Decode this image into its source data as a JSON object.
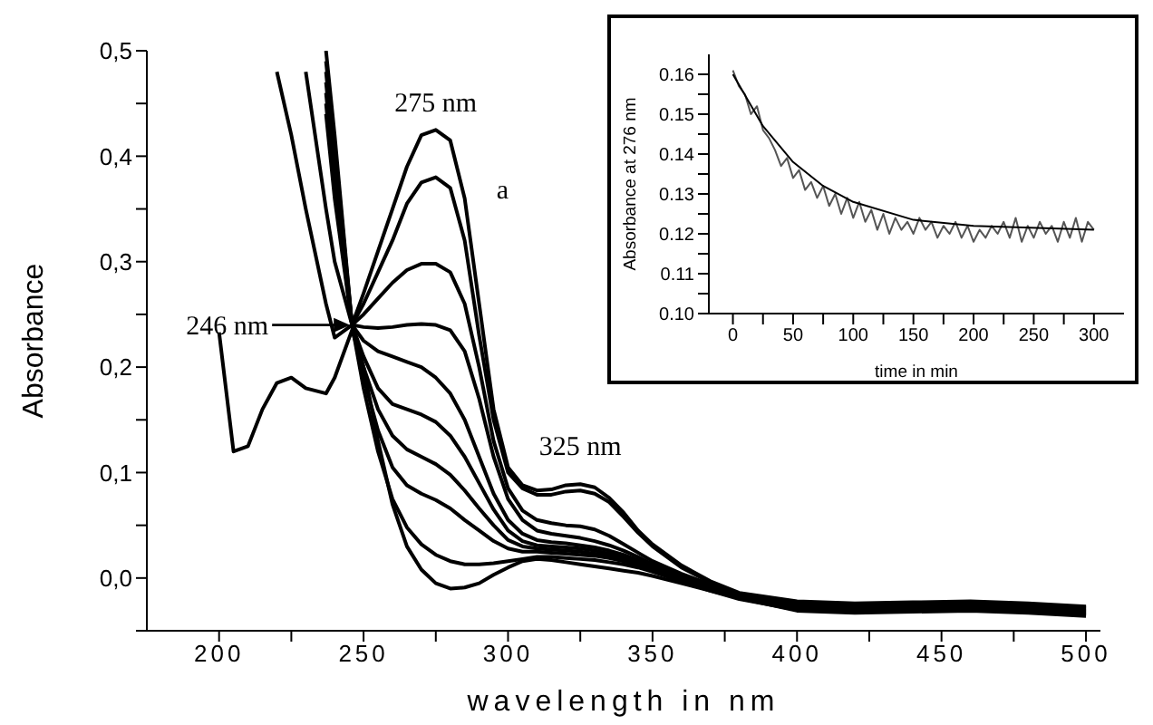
{
  "chart_data": [
    {
      "type": "line",
      "xlabel": "wavelength in nm",
      "ylabel": "Absorbance",
      "marker": "none",
      "x": [
        200,
        205,
        210,
        215,
        220,
        225,
        230,
        237,
        240,
        246,
        250,
        255,
        260,
        265,
        270,
        275,
        280,
        285,
        290,
        295,
        300,
        305,
        310,
        315,
        320,
        325,
        330,
        335,
        340,
        345,
        350,
        360,
        370,
        380,
        400,
        420,
        440,
        460,
        480,
        500
      ],
      "xlim": [
        175,
        505
      ],
      "xticks": [
        200,
        {
          "value": 225,
          "label": null
        },
        250,
        {
          "value": 275,
          "label": null
        },
        300,
        {
          "value": 325,
          "label": null
        },
        350,
        {
          "value": 375,
          "label": null
        },
        400,
        {
          "value": 425,
          "label": null
        },
        450,
        {
          "value": 475,
          "label": null
        },
        500
      ],
      "ylim": [
        -0.05,
        0.5
      ],
      "yticks": [
        {
          "value": -0.05,
          "label": null
        },
        {
          "value": 0,
          "label": "0,0"
        },
        {
          "value": 0.05,
          "label": null
        },
        {
          "value": 0.1,
          "label": "0,1"
        },
        {
          "value": 0.15,
          "label": null
        },
        {
          "value": 0.2,
          "label": "0,2"
        },
        {
          "value": 0.25,
          "label": null
        },
        {
          "value": 0.3,
          "label": "0,3"
        },
        {
          "value": 0.35,
          "label": null
        },
        {
          "value": 0.4,
          "label": "0,4"
        },
        {
          "value": 0.45,
          "label": null
        },
        {
          "value": 0.5,
          "label": "0,5"
        }
      ],
      "series": [
        {
          "color": "#000000",
          "values": [
            null,
            null,
            null,
            null,
            null,
            null,
            null,
            0.5,
            0.42,
            0.24,
            0.27,
            0.31,
            0.35,
            0.39,
            0.42,
            0.425,
            0.415,
            0.36,
            0.26,
            0.16,
            0.105,
            0.088,
            0.083,
            0.084,
            0.088,
            0.089,
            0.086,
            0.076,
            0.062,
            0.045,
            0.032,
            0.012,
            -0.003,
            -0.014,
            -0.022,
            -0.024,
            -0.023,
            -0.022,
            -0.024,
            -0.027
          ]
        },
        {
          "color": "#000000",
          "values": [
            null,
            null,
            null,
            null,
            null,
            null,
            null,
            0.49,
            0.41,
            0.24,
            0.26,
            0.29,
            0.32,
            0.355,
            0.375,
            0.38,
            0.37,
            0.32,
            0.23,
            0.15,
            0.1,
            0.085,
            0.079,
            0.079,
            0.082,
            0.083,
            0.08,
            0.072,
            0.058,
            0.043,
            0.03,
            0.01,
            -0.004,
            -0.015,
            -0.023,
            -0.025,
            -0.024,
            -0.023,
            -0.025,
            -0.028
          ]
        },
        {
          "color": "#000000",
          "values": [
            null,
            null,
            null,
            null,
            null,
            null,
            null,
            0.48,
            0.4,
            0.24,
            0.25,
            0.265,
            0.28,
            0.292,
            0.298,
            0.298,
            0.29,
            0.26,
            0.2,
            0.13,
            0.085,
            0.064,
            0.055,
            0.052,
            0.05,
            0.049,
            0.046,
            0.04,
            0.032,
            0.024,
            0.016,
            0.004,
            -0.006,
            -0.016,
            -0.024,
            -0.026,
            -0.025,
            -0.024,
            -0.026,
            -0.029
          ]
        },
        {
          "color": "#000000",
          "values": [
            null,
            null,
            null,
            null,
            0.48,
            0.42,
            0.35,
            0.26,
            0.228,
            0.24,
            0.238,
            0.237,
            0.238,
            0.24,
            0.241,
            0.24,
            0.235,
            0.215,
            0.17,
            0.115,
            0.075,
            0.055,
            0.045,
            0.042,
            0.04,
            0.038,
            0.035,
            0.031,
            0.026,
            0.02,
            0.013,
            0.002,
            -0.008,
            -0.017,
            -0.025,
            -0.027,
            -0.026,
            -0.025,
            -0.027,
            -0.03
          ]
        },
        {
          "color": "#000000",
          "values": [
            null,
            null,
            null,
            null,
            null,
            null,
            0.48,
            0.35,
            0.3,
            0.24,
            0.225,
            0.215,
            0.21,
            0.205,
            0.2,
            0.19,
            0.175,
            0.15,
            0.115,
            0.08,
            0.055,
            0.042,
            0.036,
            0.034,
            0.033,
            0.031,
            0.029,
            0.026,
            0.022,
            0.017,
            0.011,
            0.001,
            -0.009,
            -0.018,
            -0.026,
            -0.028,
            -0.027,
            -0.026,
            -0.028,
            -0.031
          ]
        },
        {
          "color": "#000000",
          "values": [
            null,
            null,
            null,
            null,
            null,
            null,
            null,
            0.47,
            0.39,
            0.24,
            0.21,
            0.18,
            0.165,
            0.16,
            0.155,
            0.148,
            0.135,
            0.115,
            0.09,
            0.065,
            0.045,
            0.035,
            0.031,
            0.03,
            0.029,
            0.028,
            0.026,
            0.023,
            0.02,
            0.015,
            0.01,
            0,
            -0.01,
            -0.018,
            -0.027,
            -0.029,
            -0.028,
            -0.027,
            -0.029,
            -0.032
          ]
        },
        {
          "color": "#000000",
          "values": [
            null,
            null,
            null,
            null,
            null,
            null,
            null,
            0.46,
            0.38,
            0.24,
            0.2,
            0.16,
            0.135,
            0.122,
            0.115,
            0.108,
            0.098,
            0.083,
            0.066,
            0.05,
            0.036,
            0.03,
            0.028,
            0.027,
            0.026,
            0.025,
            0.023,
            0.021,
            0.018,
            0.014,
            0.009,
            -0.001,
            -0.01,
            -0.019,
            -0.028,
            -0.03,
            -0.029,
            -0.028,
            -0.03,
            -0.033
          ]
        },
        {
          "color": "#000000",
          "values": [
            null,
            null,
            null,
            null,
            null,
            null,
            null,
            0.45,
            0.37,
            0.24,
            0.19,
            0.14,
            0.105,
            0.088,
            0.08,
            0.074,
            0.066,
            0.055,
            0.045,
            0.035,
            0.028,
            0.025,
            0.025,
            0.024,
            0.023,
            0.022,
            0.021,
            0.019,
            0.016,
            0.012,
            0.008,
            -0.002,
            -0.011,
            -0.019,
            -0.029,
            -0.031,
            -0.03,
            -0.029,
            -0.031,
            -0.034
          ]
        },
        {
          "color": "#000000",
          "values": [
            null,
            null,
            null,
            null,
            null,
            null,
            null,
            0.44,
            0.36,
            0.24,
            0.18,
            0.12,
            0.075,
            0.048,
            0.032,
            0.022,
            0.016,
            0.013,
            0.013,
            0.014,
            0.016,
            0.018,
            0.02,
            0.02,
            0.019,
            0.018,
            0.017,
            0.015,
            0.013,
            0.01,
            0.006,
            -0.003,
            -0.012,
            -0.02,
            -0.03,
            -0.032,
            -0.031,
            -0.03,
            -0.032,
            -0.035
          ]
        },
        {
          "color": "#000000",
          "values": [
            0.233,
            0.12,
            0.125,
            0.16,
            0.185,
            0.19,
            0.18,
            0.175,
            0.19,
            0.235,
            0.2,
            0.13,
            0.07,
            0.03,
            0.008,
            -0.005,
            -0.01,
            -0.009,
            -0.005,
            0.003,
            0.01,
            0.016,
            0.018,
            0.017,
            0.015,
            0.013,
            0.011,
            0.009,
            0.007,
            0.005,
            0.002,
            -0.005,
            -0.012,
            -0.019,
            -0.031,
            -0.033,
            -0.032,
            -0.031,
            -0.033,
            -0.036
          ]
        }
      ],
      "annotations": [
        {
          "text": "275 nm",
          "x": 275,
          "y": 0.425
        },
        "246 nm",
        {
          "text": "325 nm",
          "x": 325,
          "y": 0.089
        },
        "a"
      ]
    },
    {
      "type": "line",
      "xlabel": "time in min",
      "ylabel": "Absorbance at 276 nm",
      "marker": "none",
      "x": [
        0,
        5,
        10,
        15,
        20,
        25,
        30,
        35,
        40,
        45,
        50,
        55,
        60,
        65,
        70,
        75,
        80,
        85,
        90,
        95,
        100,
        105,
        110,
        115,
        120,
        125,
        130,
        135,
        140,
        145,
        150,
        155,
        160,
        165,
        170,
        175,
        180,
        185,
        190,
        195,
        200,
        205,
        210,
        215,
        220,
        225,
        230,
        235,
        240,
        245,
        250,
        255,
        260,
        265,
        270,
        275,
        280,
        285,
        290,
        295,
        300
      ],
      "xlim": [
        -20,
        325
      ],
      "xticks": [
        0,
        {
          "value": 25,
          "label": null
        },
        50,
        {
          "value": 75,
          "label": null
        },
        100,
        {
          "value": 125,
          "label": null
        },
        150,
        {
          "value": 175,
          "label": null
        },
        200,
        {
          "value": 225,
          "label": null
        },
        250,
        {
          "value": 275,
          "label": null
        },
        300
      ],
      "ylim": [
        0.1,
        0.165
      ],
      "yticks": [
        {
          "value": 0.1,
          "label": "0.10"
        },
        {
          "value": 0.105,
          "label": null
        },
        0.11,
        {
          "value": 0.115,
          "label": null
        },
        0.12,
        {
          "value": 0.125,
          "label": null
        },
        0.13,
        {
          "value": 0.135,
          "label": null
        },
        0.14,
        {
          "value": 0.145,
          "label": null
        },
        0.15,
        {
          "value": 0.155,
          "label": null
        },
        0.16
      ],
      "series": [
        {
          "color": "#555555",
          "values": [
            0.161,
            0.157,
            0.155,
            0.15,
            0.152,
            0.146,
            0.144,
            0.141,
            0.137,
            0.139,
            0.134,
            0.136,
            0.131,
            0.133,
            0.129,
            0.132,
            0.127,
            0.13,
            0.125,
            0.129,
            0.124,
            0.128,
            0.123,
            0.126,
            0.121,
            0.125,
            0.12,
            0.124,
            0.121,
            0.123,
            0.12,
            0.124,
            0.121,
            0.123,
            0.119,
            0.122,
            0.12,
            0.123,
            0.119,
            0.122,
            0.118,
            0.121,
            0.119,
            0.122,
            0.12,
            0.123,
            0.119,
            0.124,
            0.118,
            0.122,
            0.119,
            0.123,
            0.12,
            0.122,
            0.118,
            0.123,
            0.119,
            0.124,
            0.118,
            0.123,
            0.121
          ]
        },
        {
          "color": "#000000",
          "x": [
            0,
            25,
            50,
            75,
            100,
            150,
            200,
            300
          ],
          "values": [
            0.16,
            0.147,
            0.138,
            0.132,
            0.128,
            0.1235,
            0.122,
            0.121
          ]
        }
      ]
    }
  ]
}
